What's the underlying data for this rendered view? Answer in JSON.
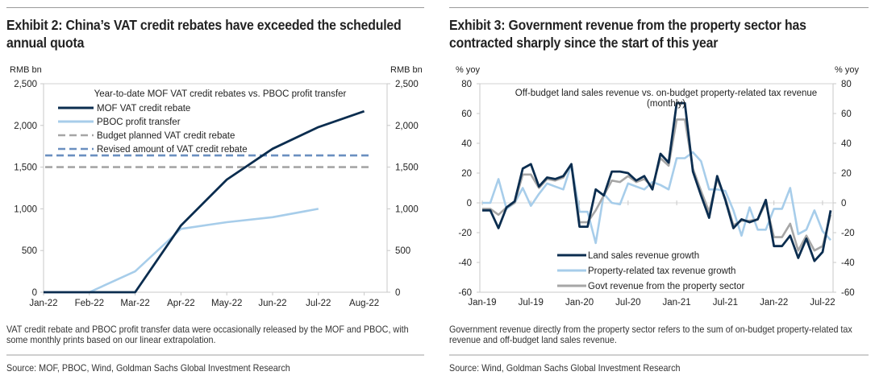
{
  "exhibit2": {
    "title": "Exhibit 2: China’s VAT credit rebates have exceeded the scheduled annual quota",
    "note": "VAT credit rebate and PBOC profit transfer data were occasionally released by the MOF and PBOC, with some monthly prints based on our linear extrapolation.",
    "source": "Source: MOF, PBOC, Wind, Goldman Sachs Global Investment Research"
  },
  "exhibit3": {
    "title": "Exhibit 3: Government revenue from the property sector has contracted sharply since the start of this year",
    "note": "Government revenue directly from the property sector refers to the sum of on-budget property-related tax revenue and off-budget land sales revenue.",
    "source": "Source: Wind, Goldman Sachs Global Investment Research"
  },
  "chart_data": [
    {
      "type": "line",
      "title": "Year-to-date MOF VAT credit rebates vs. PBOC profit transfer",
      "ylabel_left": "RMB bn",
      "ylabel_right": "RMB bn",
      "ylim": [
        0,
        2500
      ],
      "yticks": [
        0,
        500,
        1000,
        1500,
        2000,
        2500
      ],
      "ytick_labels": [
        "0",
        "500",
        "1,000",
        "1,500",
        "2,000",
        "2,500"
      ],
      "categories": [
        "Jan-22",
        "Feb-22",
        "Mar-22",
        "Apr-22",
        "May-22",
        "Jun-22",
        "Jul-22",
        "Aug-22"
      ],
      "grid": false,
      "legend": "top-left",
      "series": [
        {
          "name": "MOF VAT credit rebate",
          "style": "solid",
          "color": "#0b2d4f",
          "values": [
            0,
            0,
            0,
            800,
            1350,
            1720,
            1980,
            2170
          ]
        },
        {
          "name": "PBOC profit transfer",
          "style": "solid",
          "color": "#a7cdea",
          "values": [
            0,
            0,
            250,
            760,
            840,
            900,
            1000,
            null
          ]
        },
        {
          "name": "Budget planned VAT credit rebate",
          "style": "dashed",
          "color": "#a6a6a6",
          "values": [
            1500,
            1500,
            1500,
            1500,
            1500,
            1500,
            1500,
            1500
          ]
        },
        {
          "name": "Revised amount of VAT credit rebate",
          "style": "dashed",
          "color": "#6a8fc0",
          "values": [
            1640,
            1640,
            1640,
            1640,
            1640,
            1640,
            1640,
            1640
          ]
        }
      ]
    },
    {
      "type": "line",
      "title": "Off-budget land sales revenue vs. on-budget property-related tax revenue (monthly)",
      "ylabel_left": "% yoy",
      "ylabel_right": "% yoy",
      "ylim": [
        -60,
        80
      ],
      "yticks": [
        -60,
        -40,
        -20,
        0,
        20,
        40,
        60,
        80
      ],
      "xtick_labels": [
        "Jan-19",
        "Jul-19",
        "Jan-20",
        "Jul-20",
        "Jan-21",
        "Jul-21",
        "Jan-22",
        "Jul-22"
      ],
      "x_start": "Jan-19",
      "x_end": "Aug-22",
      "grid": false,
      "legend": "bottom-center",
      "series": [
        {
          "name": "Land sales revenue growth",
          "color": "#0b2d4f",
          "values": [
            -5,
            -5,
            -17,
            -3,
            1,
            23,
            26,
            11,
            17,
            16,
            18,
            26,
            -16,
            -16,
            9,
            5,
            21,
            21,
            20,
            15,
            18,
            9,
            33,
            27,
            67,
            67,
            21,
            5,
            -10,
            18,
            2,
            -17,
            -11,
            -13,
            -11,
            2,
            -29,
            -29,
            -22,
            -37,
            -24,
            -39,
            -33,
            -5
          ]
        },
        {
          "name": "Property-related tax revenue growth",
          "color": "#a7cdea",
          "values": [
            0,
            0,
            16,
            -4,
            0,
            10,
            -2,
            6,
            13,
            11,
            9,
            26,
            -6,
            -6,
            -27,
            6,
            0,
            -1,
            13,
            11,
            9,
            14,
            12,
            9,
            30,
            30,
            34,
            28,
            9,
            9,
            8,
            -5,
            -22,
            -3,
            -18,
            -18,
            -4,
            -4,
            10,
            -21,
            -18,
            -5,
            -19,
            -25
          ]
        },
        {
          "name": "Govt revenue from the property sector",
          "color": "#a6a6a6",
          "values": [
            -4,
            -4,
            -8,
            -3,
            0,
            19,
            19,
            10,
            16,
            15,
            17,
            26,
            -13,
            -13,
            -5,
            5,
            15,
            14,
            18,
            14,
            16,
            11,
            30,
            25,
            56,
            56,
            23,
            8,
            -6,
            16,
            3,
            -15,
            -12,
            -12,
            -11,
            0,
            -23,
            -23,
            -14,
            -32,
            -22,
            -32,
            -29,
            -8
          ]
        }
      ]
    }
  ]
}
